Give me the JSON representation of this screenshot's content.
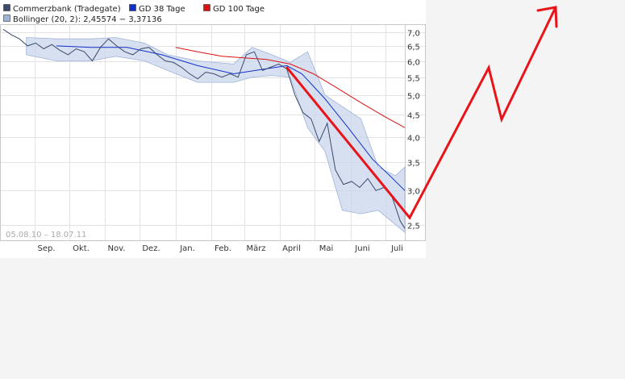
{
  "chart_data": {
    "type": "line",
    "legend": [
      {
        "label": "Commerzbank (Tradegate)",
        "color": "#3a4a6b"
      },
      {
        "label": "GD 38 Tage",
        "color": "#1030cc"
      },
      {
        "label": "GD 100 Tage",
        "color": "#dd1111"
      },
      {
        "label": "Bollinger (20, 2): 2,45574 − 3,37136",
        "color": "#9fb4d8"
      }
    ],
    "x_tick_labels": [
      "Sep.",
      "Okt.",
      "Nov.",
      "Dez.",
      "Jan.",
      "Feb.",
      "März",
      "April",
      "Mai",
      "Juni",
      "Juli"
    ],
    "y_tick_labels": [
      "7,0",
      "6,5",
      "6,0",
      "5,5",
      "5,0",
      "4,5",
      "4,0",
      "3,5",
      "3,0",
      "2,5"
    ],
    "y_scale": "log",
    "ylim": [
      2.3,
      7.3
    ],
    "date_range": "05.08.10 – 18.07.11",
    "price": [
      [
        "2010-08-05",
        7.1
      ],
      [
        "2010-08-12",
        6.9
      ],
      [
        "2010-08-19",
        6.75
      ],
      [
        "2010-08-26",
        6.5
      ],
      [
        "2010-09-02",
        6.6
      ],
      [
        "2010-09-09",
        6.4
      ],
      [
        "2010-09-16",
        6.55
      ],
      [
        "2010-09-23",
        6.35
      ],
      [
        "2010-09-30",
        6.2
      ],
      [
        "2010-10-07",
        6.4
      ],
      [
        "2010-10-14",
        6.3
      ],
      [
        "2010-10-21",
        6.0
      ],
      [
        "2010-10-28",
        6.45
      ],
      [
        "2010-11-04",
        6.75
      ],
      [
        "2010-11-11",
        6.5
      ],
      [
        "2010-11-18",
        6.3
      ],
      [
        "2010-11-25",
        6.2
      ],
      [
        "2010-12-02",
        6.4
      ],
      [
        "2010-12-09",
        6.45
      ],
      [
        "2010-12-16",
        6.2
      ],
      [
        "2010-12-23",
        6.0
      ],
      [
        "2010-12-30",
        5.95
      ],
      [
        "2011-01-06",
        5.8
      ],
      [
        "2011-01-13",
        5.6
      ],
      [
        "2011-01-20",
        5.45
      ],
      [
        "2011-01-27",
        5.65
      ],
      [
        "2011-02-03",
        5.6
      ],
      [
        "2011-02-10",
        5.5
      ],
      [
        "2011-02-17",
        5.6
      ],
      [
        "2011-02-24",
        5.5
      ],
      [
        "2011-03-03",
        6.2
      ],
      [
        "2011-03-10",
        6.3
      ],
      [
        "2011-03-17",
        5.7
      ],
      [
        "2011-03-24",
        5.8
      ],
      [
        "2011-03-31",
        5.9
      ],
      [
        "2011-04-07",
        5.75
      ],
      [
        "2011-04-14",
        5.0
      ],
      [
        "2011-04-21",
        4.55
      ],
      [
        "2011-04-28",
        4.4
      ],
      [
        "2011-05-05",
        3.9
      ],
      [
        "2011-05-12",
        4.3
      ],
      [
        "2011-05-19",
        3.35
      ],
      [
        "2011-05-26",
        3.1
      ],
      [
        "2011-06-02",
        3.15
      ],
      [
        "2011-06-09",
        3.05
      ],
      [
        "2011-06-16",
        3.2
      ],
      [
        "2011-06-23",
        3.0
      ],
      [
        "2011-06-30",
        3.05
      ],
      [
        "2011-07-07",
        2.9
      ],
      [
        "2011-07-14",
        2.55
      ],
      [
        "2011-07-18",
        2.45
      ]
    ],
    "gd38": [
      [
        "2010-09-20",
        6.5
      ],
      [
        "2010-10-20",
        6.45
      ],
      [
        "2010-11-20",
        6.45
      ],
      [
        "2010-12-20",
        6.2
      ],
      [
        "2011-01-20",
        5.85
      ],
      [
        "2011-02-20",
        5.6
      ],
      [
        "2011-03-20",
        5.75
      ],
      [
        "2011-04-07",
        5.85
      ],
      [
        "2011-04-20",
        5.6
      ],
      [
        "2011-05-10",
        4.9
      ],
      [
        "2011-05-30",
        4.2
      ],
      [
        "2011-06-20",
        3.55
      ],
      [
        "2011-07-05",
        3.25
      ],
      [
        "2011-07-18",
        3.0
      ]
    ],
    "gd100": [
      [
        "2011-01-01",
        6.45
      ],
      [
        "2011-01-20",
        6.3
      ],
      [
        "2011-02-10",
        6.15
      ],
      [
        "2011-03-01",
        6.1
      ],
      [
        "2011-03-20",
        6.05
      ],
      [
        "2011-04-10",
        5.9
      ],
      [
        "2011-04-30",
        5.6
      ],
      [
        "2011-05-20",
        5.2
      ],
      [
        "2011-06-10",
        4.8
      ],
      [
        "2011-07-01",
        4.45
      ],
      [
        "2011-07-18",
        4.2
      ]
    ],
    "bollinger_upper": [
      [
        "2010-08-25",
        6.8
      ],
      [
        "2010-09-20",
        6.75
      ],
      [
        "2010-10-20",
        6.75
      ],
      [
        "2010-11-10",
        6.8
      ],
      [
        "2010-12-05",
        6.6
      ],
      [
        "2010-12-25",
        6.2
      ],
      [
        "2011-01-20",
        6.0
      ],
      [
        "2011-02-20",
        5.9
      ],
      [
        "2011-03-08",
        6.45
      ],
      [
        "2011-03-25",
        6.2
      ],
      [
        "2011-04-10",
        5.95
      ],
      [
        "2011-04-25",
        6.3
      ],
      [
        "2011-05-10",
        5.0
      ],
      [
        "2011-05-25",
        4.7
      ],
      [
        "2011-06-10",
        4.4
      ],
      [
        "2011-06-25",
        3.4
      ],
      [
        "2011-07-10",
        3.25
      ],
      [
        "2011-07-18",
        3.4
      ]
    ],
    "bollinger_lower": [
      [
        "2010-08-25",
        6.2
      ],
      [
        "2010-09-20",
        6.0
      ],
      [
        "2010-10-20",
        6.0
      ],
      [
        "2010-11-10",
        6.15
      ],
      [
        "2010-12-05",
        6.0
      ],
      [
        "2010-12-25",
        5.7
      ],
      [
        "2011-01-20",
        5.35
      ],
      [
        "2011-02-20",
        5.35
      ],
      [
        "2011-03-08",
        5.5
      ],
      [
        "2011-03-25",
        5.55
      ],
      [
        "2011-04-10",
        5.5
      ],
      [
        "2011-04-25",
        4.2
      ],
      [
        "2011-05-10",
        3.7
      ],
      [
        "2011-05-25",
        2.7
      ],
      [
        "2011-06-10",
        2.65
      ],
      [
        "2011-06-25",
        2.7
      ],
      [
        "2011-07-10",
        2.5
      ],
      [
        "2011-07-18",
        2.4
      ]
    ],
    "annotation_color": "#e8141a"
  }
}
